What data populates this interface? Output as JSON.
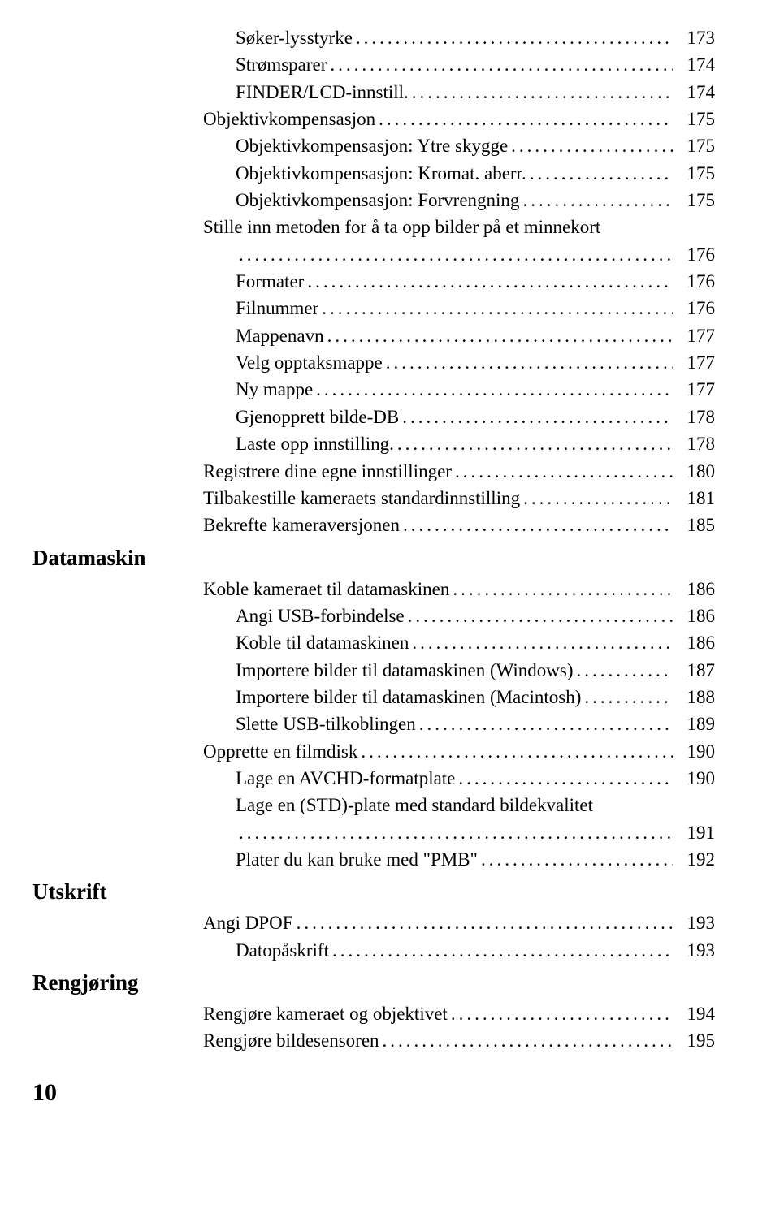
{
  "sections": [
    {
      "title": null,
      "entries": [
        {
          "indent": 3,
          "label": "Søker-lysstyrke",
          "page": "173"
        },
        {
          "indent": 3,
          "label": "Strømsparer",
          "page": "174"
        },
        {
          "indent": 3,
          "label": "FINDER/LCD-innstill.",
          "page": "174"
        },
        {
          "indent": 2,
          "label": "Objektivkompensasjon",
          "page": "175"
        },
        {
          "indent": 3,
          "label": "Objektivkompensasjon: Ytre skygge",
          "page": "175"
        },
        {
          "indent": 3,
          "label": "Objektivkompensasjon: Kromat. aberr.",
          "page": "175"
        },
        {
          "indent": 3,
          "label": "Objektivkompensasjon: Forvrengning",
          "page": "175"
        },
        {
          "indent": 2,
          "label": "Stille inn metoden for å ta opp bilder på et minnekort",
          "page": null
        },
        {
          "indent": "wrap",
          "label": "",
          "page": "176"
        },
        {
          "indent": 3,
          "label": "Formater",
          "page": "176"
        },
        {
          "indent": 3,
          "label": "Filnummer",
          "page": "176"
        },
        {
          "indent": 3,
          "label": "Mappenavn",
          "page": "177"
        },
        {
          "indent": 3,
          "label": "Velg opptaksmappe",
          "page": "177"
        },
        {
          "indent": 3,
          "label": "Ny mappe",
          "page": "177"
        },
        {
          "indent": 3,
          "label": "Gjenopprett bilde-DB",
          "page": "178"
        },
        {
          "indent": 3,
          "label": "Laste opp innstilling.",
          "page": "178"
        },
        {
          "indent": 2,
          "label": "Registrere dine egne innstillinger",
          "page": "180"
        },
        {
          "indent": 2,
          "label": "Tilbakestille kameraets standardinnstilling",
          "page": "181"
        },
        {
          "indent": 2,
          "label": "Bekrefte kameraversjonen",
          "page": "185"
        }
      ]
    },
    {
      "title": "Datamaskin",
      "entries": [
        {
          "indent": 2,
          "label": "Koble kameraet til datamaskinen",
          "page": "186"
        },
        {
          "indent": 3,
          "label": "Angi USB-forbindelse",
          "page": "186"
        },
        {
          "indent": 3,
          "label": "Koble til datamaskinen",
          "page": "186"
        },
        {
          "indent": 3,
          "label": "Importere bilder til datamaskinen (Windows)",
          "page": "187"
        },
        {
          "indent": 3,
          "label": "Importere bilder til datamaskinen (Macintosh)",
          "page": "188"
        },
        {
          "indent": 3,
          "label": "Slette USB-tilkoblingen",
          "page": "189"
        },
        {
          "indent": 2,
          "label": "Opprette en filmdisk",
          "page": "190"
        },
        {
          "indent": 3,
          "label": "Lage en AVCHD-formatplate",
          "page": "190"
        },
        {
          "indent": 3,
          "label": "Lage en (STD)-plate med standard bildekvalitet",
          "page": null
        },
        {
          "indent": "wrap",
          "label": "",
          "page": "191"
        },
        {
          "indent": 3,
          "label": "Plater du kan bruke med \"PMB\"",
          "page": "192"
        }
      ]
    },
    {
      "title": "Utskrift",
      "entries": [
        {
          "indent": 2,
          "label": "Angi DPOF",
          "page": "193"
        },
        {
          "indent": 3,
          "label": "Datopåskrift",
          "page": "193"
        }
      ]
    },
    {
      "title": "Rengjøring",
      "entries": [
        {
          "indent": 2,
          "label": "Rengjøre kameraet og objektivet",
          "page": "194"
        },
        {
          "indent": 2,
          "label": "Rengjøre bildesensoren",
          "page": "195"
        }
      ]
    }
  ],
  "footer_page": "10"
}
